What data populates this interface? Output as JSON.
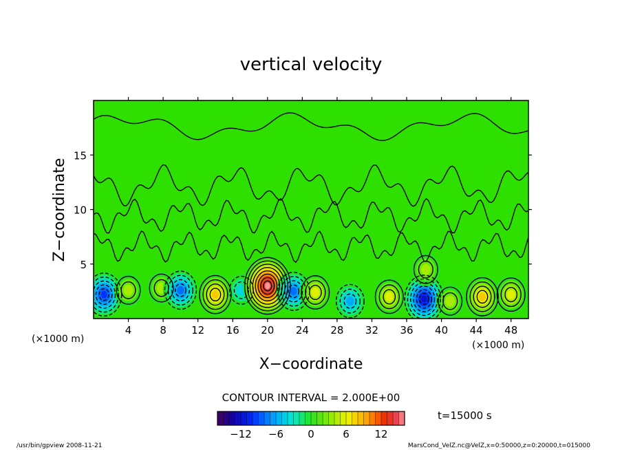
{
  "chart_data": {
    "type": "heatmap",
    "title": "vertical velocity",
    "xlabel": "X−coordinate",
    "ylabel": "Z−coordinate",
    "x_unit_left": "(×1000 m)",
    "x_unit_right": "(×1000 m)",
    "xlim": [
      0,
      50
    ],
    "ylim": [
      0,
      20
    ],
    "x_ticks": [
      4,
      8,
      12,
      16,
      20,
      24,
      28,
      32,
      36,
      40,
      44,
      48
    ],
    "y_ticks": [
      5,
      10,
      15
    ],
    "contour_interval_label": "CONTOUR INTERVAL = 2.000E+00",
    "time_label": "t=15000 s",
    "colorbar": {
      "vmin": -16,
      "vmax": 16,
      "tick_values": [
        -12,
        -6,
        0,
        6,
        12
      ],
      "tick_labels": [
        "−12",
        "−6",
        "0",
        "6",
        "12"
      ]
    },
    "features": [
      {
        "x": 1.2,
        "z": 2.2,
        "value": -10
      },
      {
        "x": 4.0,
        "z": 2.6,
        "value": 4
      },
      {
        "x": 7.8,
        "z": 2.8,
        "value": 3
      },
      {
        "x": 10.0,
        "z": 2.6,
        "value": -8
      },
      {
        "x": 14.0,
        "z": 2.2,
        "value": 7
      },
      {
        "x": 17.0,
        "z": 2.6,
        "value": -4
      },
      {
        "x": 20.0,
        "z": 3.0,
        "value": 15
      },
      {
        "x": 23.0,
        "z": 2.5,
        "value": -7
      },
      {
        "x": 25.5,
        "z": 2.4,
        "value": 5
      },
      {
        "x": 29.5,
        "z": 1.6,
        "value": -5
      },
      {
        "x": 34.0,
        "z": 2.0,
        "value": 6
      },
      {
        "x": 38.0,
        "z": 1.8,
        "value": -11
      },
      {
        "x": 38.2,
        "z": 4.5,
        "value": 3
      },
      {
        "x": 41.0,
        "z": 1.6,
        "value": 4
      },
      {
        "x": 44.7,
        "z": 2.0,
        "value": 7
      },
      {
        "x": 48.0,
        "z": 2.2,
        "value": 5
      }
    ]
  },
  "footer": {
    "left": "/usr/bin/gpview  2008-11-21",
    "right": "MarsCond_VelZ.nc@VelZ,x=0:50000,z=0:20000,t=015000"
  }
}
